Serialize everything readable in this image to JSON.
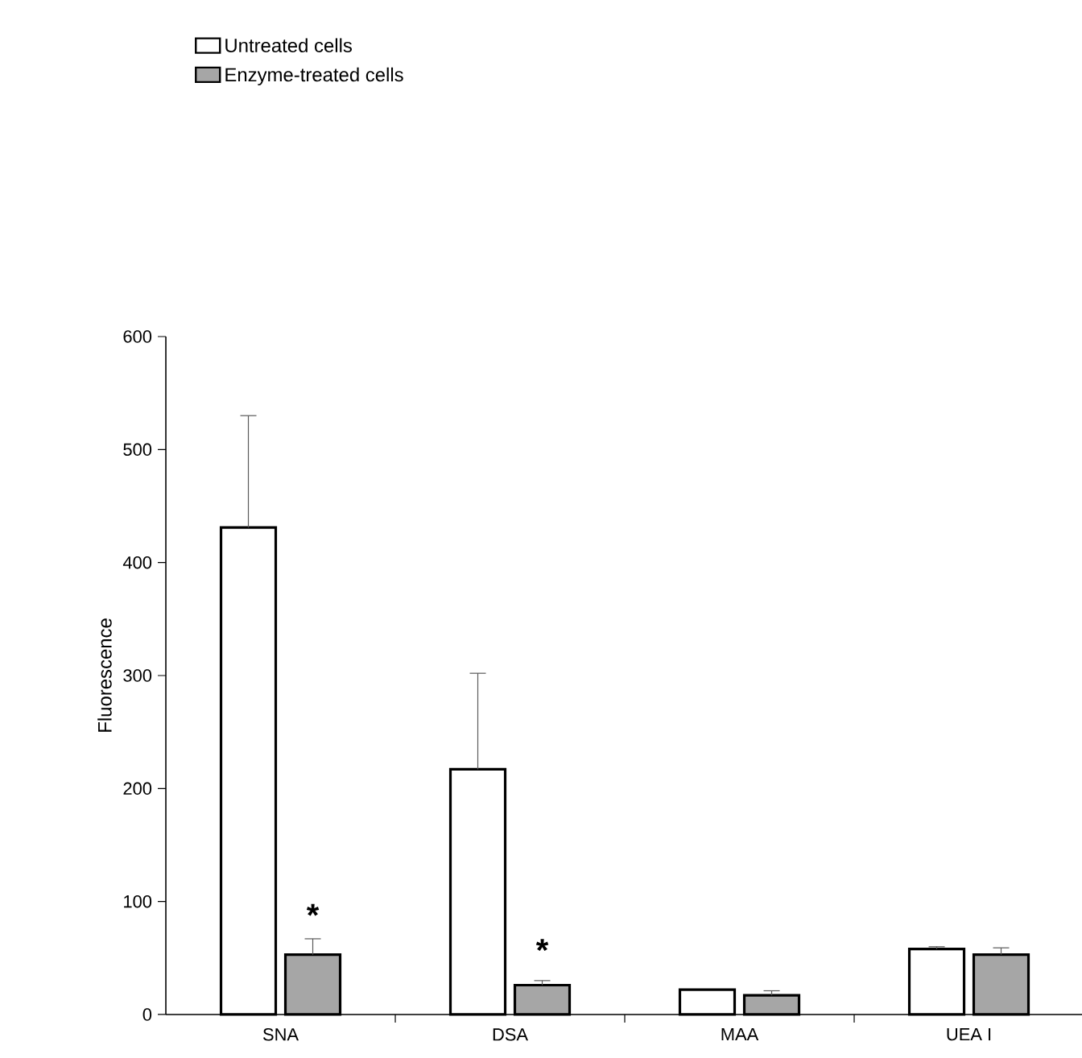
{
  "chart_data": {
    "type": "bar",
    "ylabel": "Fluorescence",
    "categories": [
      "SNA",
      "DSA",
      "MAA",
      "UEA I"
    ],
    "series": [
      {
        "name": "Untreated cells",
        "color": "#ffffff",
        "values": [
          431,
          217,
          22,
          58
        ],
        "errors": [
          [
            431,
            530
          ],
          [
            217,
            302
          ],
          null,
          [
            58,
            60
          ]
        ]
      },
      {
        "name": "Enzyme-treated cells",
        "color": "#a6a6a6",
        "values": [
          53,
          26,
          17,
          53
        ],
        "errors": [
          [
            53,
            67
          ],
          [
            26,
            30
          ],
          [
            17,
            21
          ],
          [
            53,
            59
          ]
        ]
      }
    ],
    "annotations": [
      {
        "text": "*",
        "x": "SNA",
        "y": 88
      },
      {
        "text": "*",
        "x": "DSA",
        "y": 57
      }
    ],
    "ylim": [
      0,
      600
    ],
    "yticks": [
      0,
      100,
      200,
      300,
      400,
      500,
      600
    ],
    "legend": "top left",
    "grid": false
  }
}
